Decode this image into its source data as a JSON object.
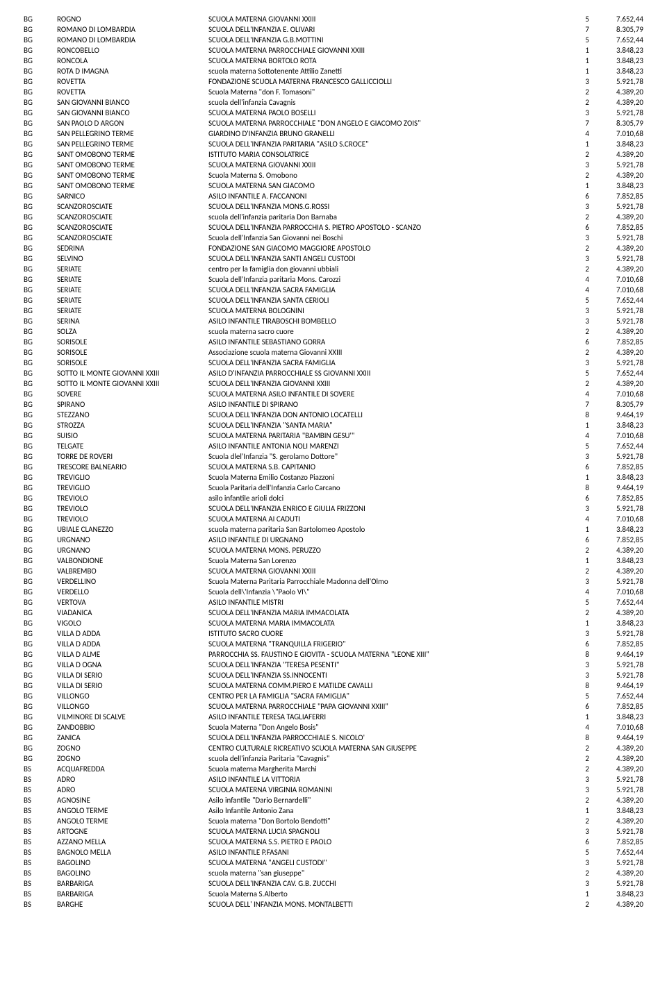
{
  "rows": [
    [
      "BG",
      "ROGNO",
      "SCUOLA MATERNA GIOVANNI XXIII",
      "5",
      "7.652,44"
    ],
    [
      "BG",
      "ROMANO DI LOMBARDIA",
      "SCUOLA DELL'INFANZIA E. OLIVARI",
      "7",
      "8.305,79"
    ],
    [
      "BG",
      "ROMANO DI LOMBARDIA",
      "SCUOLA DELL'INFANZIA G.B.MOTTINI",
      "5",
      "7.652,44"
    ],
    [
      "BG",
      "RONCOBELLO",
      "SCUOLA MATERNA PARROCCHIALE GIOVANNI XXIII",
      "1",
      "3.848,23"
    ],
    [
      "BG",
      "RONCOLA",
      "SCUOLA MATERNA BORTOLO ROTA",
      "1",
      "3.848,23"
    ],
    [
      "BG",
      "ROTA D IMAGNA",
      "scuola materna Sottotenente Attilio Zanetti",
      "1",
      "3.848,23"
    ],
    [
      "BG",
      "ROVETTA",
      "FONDAZIONE SCUOLA MATERNA FRANCESCO GALLICCIOLLI",
      "3",
      "5.921,78"
    ],
    [
      "BG",
      "ROVETTA",
      "Scuola Materna \"don F. Tomasoni\"",
      "2",
      "4.389,20"
    ],
    [
      "BG",
      "SAN GIOVANNI BIANCO",
      "scuola dell'infanzia Cavagnis",
      "2",
      "4.389,20"
    ],
    [
      "BG",
      "SAN GIOVANNI BIANCO",
      "SCUOLA MATERNA PAOLO BOSELLI",
      "3",
      "5.921,78"
    ],
    [
      "BG",
      "SAN PAOLO D ARGON",
      "SCUOLA MATERNA PARROCCHIALE \"DON ANGELO E GIACOMO ZOIS\"",
      "7",
      "8.305,79"
    ],
    [
      "BG",
      "SAN PELLEGRINO TERME",
      "GIARDINO D'INFANZIA BRUNO GRANELLI",
      "4",
      "7.010,68"
    ],
    [
      "BG",
      "SAN PELLEGRINO TERME",
      "SCUOLA DELL'INFANZIA  PARITARIA \"ASILO S.CROCE\"",
      "1",
      "3.848,23"
    ],
    [
      "BG",
      "SANT OMOBONO TERME",
      "ISTITUTO MARIA CONSOLATRICE",
      "2",
      "4.389,20"
    ],
    [
      "BG",
      "SANT OMOBONO TERME",
      "SCUOLA MATERNA GIOVANNI XXIII",
      "3",
      "5.921,78"
    ],
    [
      "BG",
      "SANT OMOBONO TERME",
      "Scuola Materna S. Omobono",
      "2",
      "4.389,20"
    ],
    [
      "BG",
      "SANT OMOBONO TERME",
      "SCUOLA MATERNA SAN GIACOMO",
      "1",
      "3.848,23"
    ],
    [
      "BG",
      "SARNICO",
      "ASILO INFANTILE A. FACCANONI",
      "6",
      "7.852,85"
    ],
    [
      "BG",
      "SCANZOROSCIATE",
      "SCUOLA DELL'INFANZIA MONS.G.ROSSI",
      "3",
      "5.921,78"
    ],
    [
      "BG",
      "SCANZOROSCIATE",
      "scuola dell'infanzia paritaria Don Barnaba",
      "2",
      "4.389,20"
    ],
    [
      "BG",
      "SCANZOROSCIATE",
      "SCUOLA DELL'INFANZIA PARROCCHIA S. PIETRO APOSTOLO - SCANZO",
      "6",
      "7.852,85"
    ],
    [
      "BG",
      "SCANZOROSCIATE",
      "Scuola dell'Infanzia San Giovanni nei Boschi",
      "3",
      "5.921,78"
    ],
    [
      "BG",
      "SEDRINA",
      "FONDAZIONE SAN GIACOMO MAGGIORE APOSTOLO",
      "2",
      "4.389,20"
    ],
    [
      "BG",
      "SELVINO",
      "SCUOLA DELL'INFANZIA SANTI ANGELI CUSTODI",
      "3",
      "5.921,78"
    ],
    [
      "BG",
      "SERIATE",
      "centro per la famiglia don giovanni ubbiali",
      "2",
      "4.389,20"
    ],
    [
      "BG",
      "SERIATE",
      "Scuola dell'Infanzia paritaria Mons. Carozzi",
      "4",
      "7.010,68"
    ],
    [
      "BG",
      "SERIATE",
      "SCUOLA DELL'INFANZIA SACRA FAMIGLIA",
      "4",
      "7.010,68"
    ],
    [
      "BG",
      "SERIATE",
      "SCUOLA DELL'INFANZIA SANTA CERIOLI",
      "5",
      "7.652,44"
    ],
    [
      "BG",
      "SERIATE",
      "SCUOLA MATERNA BOLOGNINI",
      "3",
      "5.921,78"
    ],
    [
      "BG",
      "SERINA",
      "ASILO INFANTILE TIRABOSCHI BOMBELLO",
      "3",
      "5.921,78"
    ],
    [
      "BG",
      "SOLZA",
      "scuola materna sacro cuore",
      "2",
      "4.389,20"
    ],
    [
      "BG",
      "SORISOLE",
      "ASILO INFANTILE SEBASTIANO GORRA",
      "6",
      "7.852,85"
    ],
    [
      "BG",
      "SORISOLE",
      "Associazione scuola materna Giovanni XXIII",
      "2",
      "4.389,20"
    ],
    [
      "BG",
      "SORISOLE",
      "SCUOLA DELL'INFANZIA SACRA FAMIGLIA",
      "3",
      "5.921,78"
    ],
    [
      "BG",
      "SOTTO IL MONTE GIOVANNI XXIII",
      "ASILO D'INFANZIA PARROCCHIALE SS GIOVANNI XXIII",
      "5",
      "7.652,44"
    ],
    [
      "BG",
      "SOTTO IL MONTE GIOVANNI XXIII",
      "SCUOLA DELL'INFANZIA GIOVANNI XXIII",
      "2",
      "4.389,20"
    ],
    [
      "BG",
      "SOVERE",
      "SCUOLA MATERNA ASILO INFANTILE DI SOVERE",
      "4",
      "7.010,68"
    ],
    [
      "BG",
      "SPIRANO",
      "ASILO INFANTILE DI SPIRANO",
      "7",
      "8.305,79"
    ],
    [
      "BG",
      "STEZZANO",
      "SCUOLA DELL'INFANZIA DON ANTONIO LOCATELLI",
      "8",
      "9.464,19"
    ],
    [
      "BG",
      "STROZZA",
      "SCUOLA DELL'INFANZIA \"SANTA MARIA\"",
      "1",
      "3.848,23"
    ],
    [
      "BG",
      "SUISIO",
      "SCUOLA MATERNA PARITARIA \"BAMBIN GESU'\"",
      "4",
      "7.010,68"
    ],
    [
      "BG",
      "TELGATE",
      "ASILO INFANTILE ANTONIA NOLI MARENZI",
      "5",
      "7.652,44"
    ],
    [
      "BG",
      "TORRE DE ROVERI",
      "Scuola dlel'Infanzia \"S. gerolamo Dottore\"",
      "3",
      "5.921,78"
    ],
    [
      "BG",
      "TRESCORE BALNEARIO",
      "SCUOLA MATERNA S.B. CAPITANIO",
      "6",
      "7.852,85"
    ],
    [
      "BG",
      "TREVIGLIO",
      "Scuola Materna Emilio Costanzo Piazzoni",
      "1",
      "3.848,23"
    ],
    [
      "BG",
      "TREVIGLIO",
      "Scuola Paritaria dell'Infanzia Carlo Carcano",
      "8",
      "9.464,19"
    ],
    [
      "BG",
      "TREVIOLO",
      "asilo infantile arioli dolci",
      "6",
      "7.852,85"
    ],
    [
      "BG",
      "TREVIOLO",
      "SCUOLA DELL'INFANZIA ENRICO E GIULIA FRIZZONI",
      "3",
      "5.921,78"
    ],
    [
      "BG",
      "TREVIOLO",
      "SCUOLA MATERNA AI CADUTI",
      "4",
      "7.010,68"
    ],
    [
      "BG",
      "UBIALE CLANEZZO",
      "scuola materna paritaria San Bartolomeo Apostolo",
      "1",
      "3.848,23"
    ],
    [
      "BG",
      "URGNANO",
      "ASILO INFANTILE DI URGNANO",
      "6",
      "7.852,85"
    ],
    [
      "BG",
      "URGNANO",
      "SCUOLA MATERNA MONS. PERUZZO",
      "2",
      "4.389,20"
    ],
    [
      "BG",
      "VALBONDIONE",
      "Scuola Materna San Lorenzo",
      "1",
      "3.848,23"
    ],
    [
      "BG",
      "VALBREMBO",
      "SCUOLA MATERNA GIOVANNI XXIII",
      "2",
      "4.389,20"
    ],
    [
      "BG",
      "VERDELLINO",
      "Scuola Materna Paritaria Parrocchiale Madonna dell'Olmo",
      "3",
      "5.921,78"
    ],
    [
      "BG",
      "VERDELLO",
      "Scuola dell\\'Infanzia \\\"Paolo VI\\\"",
      "4",
      "7.010,68"
    ],
    [
      "BG",
      "VERTOVA",
      "ASILO INFANTILE MISTRI",
      "5",
      "7.652,44"
    ],
    [
      "BG",
      "VIADANICA",
      "SCUOLA DELL'INFANZIA MARIA IMMACOLATA",
      "2",
      "4.389,20"
    ],
    [
      "BG",
      "VIGOLO",
      "SCUOLA MATERNA MARIA IMMACOLATA",
      "1",
      "3.848,23"
    ],
    [
      "BG",
      "VILLA D ADDA",
      "ISTITUTO SACRO CUORE",
      "3",
      "5.921,78"
    ],
    [
      "BG",
      "VILLA D ADDA",
      "SCUOLA  MATERNA \"TRANQUILLA FRIGERIO\"",
      "6",
      "7.852,85"
    ],
    [
      "BG",
      "VILLA D ALME",
      "PARROCCHIA SS. FAUSTINO E GIOVITA - SCUOLA MATERNA \"LEONE XIII\"",
      "8",
      "9.464,19"
    ],
    [
      "BG",
      "VILLA D OGNA",
      "SCUOLA DELL'INFANZIA \"TERESA PESENTI\"",
      "3",
      "5.921,78"
    ],
    [
      "BG",
      "VILLA DI SERIO",
      "SCUOLA DELL'INFANZIA SS.INNOCENTI",
      "3",
      "5.921,78"
    ],
    [
      "BG",
      "VILLA DI SERIO",
      "SCUOLA MATERNA COMM.PIERO E MATILDE CAVALLI",
      "8",
      "9.464,19"
    ],
    [
      "BG",
      "VILLONGO",
      "CENTRO PER LA FAMIGLIA \"SACRA FAMIGLIA\"",
      "5",
      "7.652,44"
    ],
    [
      "BG",
      "VILLONGO",
      "SCUOLA MATERNA PARROCCHIALE \"PAPA GIOVANNI XXIII\"",
      "6",
      "7.852,85"
    ],
    [
      "BG",
      "VILMINORE DI SCALVE",
      "ASILO INFANTILE TERESA TAGLIAFERRI",
      "1",
      "3.848,23"
    ],
    [
      "BG",
      "ZANDOBBIO",
      "Scuola Materna \"Don Angelo Bosis\"",
      "4",
      "7.010,68"
    ],
    [
      "BG",
      "ZANICA",
      "SCUOLA DELL'INFANZIA PARROCCHIALE S. NICOLO'",
      "8",
      "9.464,19"
    ],
    [
      "BG",
      "ZOGNO",
      "CENTRO CULTURALE RICREATIVO SCUOLA MATERNA SAN GIUSEPPE",
      "2",
      "4.389,20"
    ],
    [
      "BG",
      "ZOGNO",
      "scuola dell'infanzia Paritaria \"Cavagnis\"",
      "2",
      "4.389,20"
    ],
    [
      "BS",
      "ACQUAFREDDA",
      "Scuola materna Margherita Marchi",
      "2",
      "4.389,20"
    ],
    [
      "BS",
      "ADRO",
      "ASILO INFANTILE LA VITTORIA",
      "3",
      "5.921,78"
    ],
    [
      "BS",
      "ADRO",
      "SCUOLA MATERNA VIRGINIA ROMANINI",
      "3",
      "5.921,78"
    ],
    [
      "BS",
      "AGNOSINE",
      "Asilo infantile \"Dario Bernardelli\"",
      "2",
      "4.389,20"
    ],
    [
      "BS",
      "ANGOLO TERME",
      "Asilo Infantile Antonio Zana",
      "1",
      "3.848,23"
    ],
    [
      "BS",
      "ANGOLO TERME",
      "Scuola materna \"Don Bortolo Bendotti\"",
      "2",
      "4.389,20"
    ],
    [
      "BS",
      "ARTOGNE",
      "SCUOLA MATERNA LUCIA SPAGNOLI",
      "3",
      "5.921,78"
    ],
    [
      "BS",
      "AZZANO MELLA",
      "SCUOLA MATERNA S.S. PIETRO E PAOLO",
      "6",
      "7.852,85"
    ],
    [
      "BS",
      "BAGNOLO MELLA",
      "ASILO INFANTILE P.FASANI",
      "5",
      "7.652,44"
    ],
    [
      "BS",
      "BAGOLINO",
      "SCUOLA MATERNA \"ANGELI CUSTODI\"",
      "3",
      "5.921,78"
    ],
    [
      "BS",
      "BAGOLINO",
      "scuola materna \"san giuseppe\"",
      "2",
      "4.389,20"
    ],
    [
      "BS",
      "BARBARIGA",
      "SCUOLA DELL'INFANZIA CAV. G.B. ZUCCHI",
      "3",
      "5.921,78"
    ],
    [
      "BS",
      "BARBARIGA",
      "Scuola Materna S.Alberto",
      "1",
      "3.848,23"
    ],
    [
      "BS",
      "BARGHE",
      "SCUOLA DELL' INFANZIA MONS. MONTALBETTI",
      "2",
      "4.389,20"
    ]
  ]
}
